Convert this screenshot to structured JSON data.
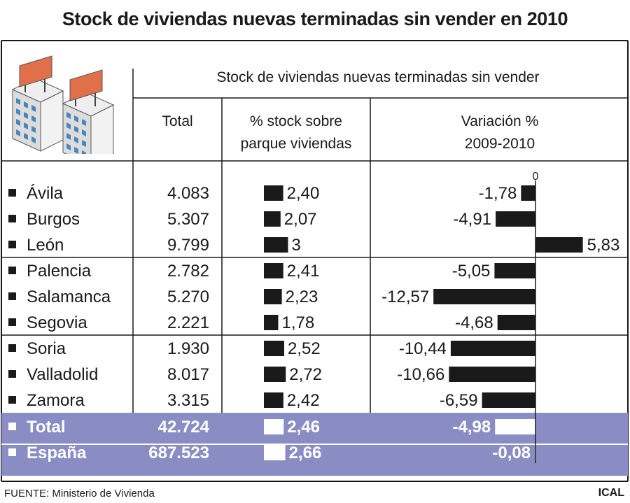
{
  "title": "Stock de viviendas nuevas terminadas sin vender en 2010",
  "header": {
    "group": "Stock de viviendas nuevas terminadas sin vender",
    "col_total": "Total",
    "col_pct_line1": "% stock sobre",
    "col_pct_line2": "parque viviendas",
    "col_var_line1": "Variación %",
    "col_var_line2": "2009-2010",
    "zero_label": "0"
  },
  "footer": {
    "source": "FUENTE: Ministerio de Vivienda",
    "credit": "ICAL"
  },
  "colors": {
    "bar": "#1a1a1a",
    "total_band": "#8a8dc4",
    "total_text": "#ffffff",
    "lines": "#1a1a1a",
    "building_roof": "#e0704a",
    "building_face": "#f2f2f2",
    "building_window": "#4a86b8"
  },
  "chart_data": {
    "type": "table",
    "columns": [
      "Total",
      "% stock sobre parque viviendas",
      "Variación % 2009-2010"
    ],
    "rows": [
      {
        "name": "Ávila",
        "total": "4.083",
        "pct": 2.4,
        "pct_label": "2,40",
        "var": -1.78,
        "var_label": "-1,78"
      },
      {
        "name": "Burgos",
        "total": "5.307",
        "pct": 2.07,
        "pct_label": "2,07",
        "var": -4.91,
        "var_label": "-4,91"
      },
      {
        "name": "León",
        "total": "9.799",
        "pct": 3,
        "pct_label": "3",
        "var": 5.83,
        "var_label": "5,83"
      },
      {
        "name": "Palencia",
        "total": "2.782",
        "pct": 2.41,
        "pct_label": "2,41",
        "var": -5.05,
        "var_label": "-5,05"
      },
      {
        "name": "Salamanca",
        "total": "5.270",
        "pct": 2.23,
        "pct_label": "2,23",
        "var": -12.57,
        "var_label": "-12,57"
      },
      {
        "name": "Segovia",
        "total": "2.221",
        "pct": 1.78,
        "pct_label": "1,78",
        "var": -4.68,
        "var_label": "-4,68"
      },
      {
        "name": "Soria",
        "total": "1.930",
        "pct": 2.52,
        "pct_label": "2,52",
        "var": -10.44,
        "var_label": "-10,44"
      },
      {
        "name": "Valladolid",
        "total": "8.017",
        "pct": 2.72,
        "pct_label": "2,72",
        "var": -10.66,
        "var_label": "-10,66"
      },
      {
        "name": "Zamora",
        "total": "3.315",
        "pct": 2.42,
        "pct_label": "2,42",
        "var": -6.59,
        "var_label": "-6,59"
      }
    ],
    "summary": [
      {
        "name": "Total",
        "total": "42.724",
        "pct": 2.46,
        "pct_label": "2,46",
        "var": -4.98,
        "var_label": "-4,98"
      },
      {
        "name": "España",
        "total": "687.523",
        "pct": 2.66,
        "pct_label": "2,66",
        "var": -0.08,
        "var_label": "-0,08"
      }
    ]
  }
}
